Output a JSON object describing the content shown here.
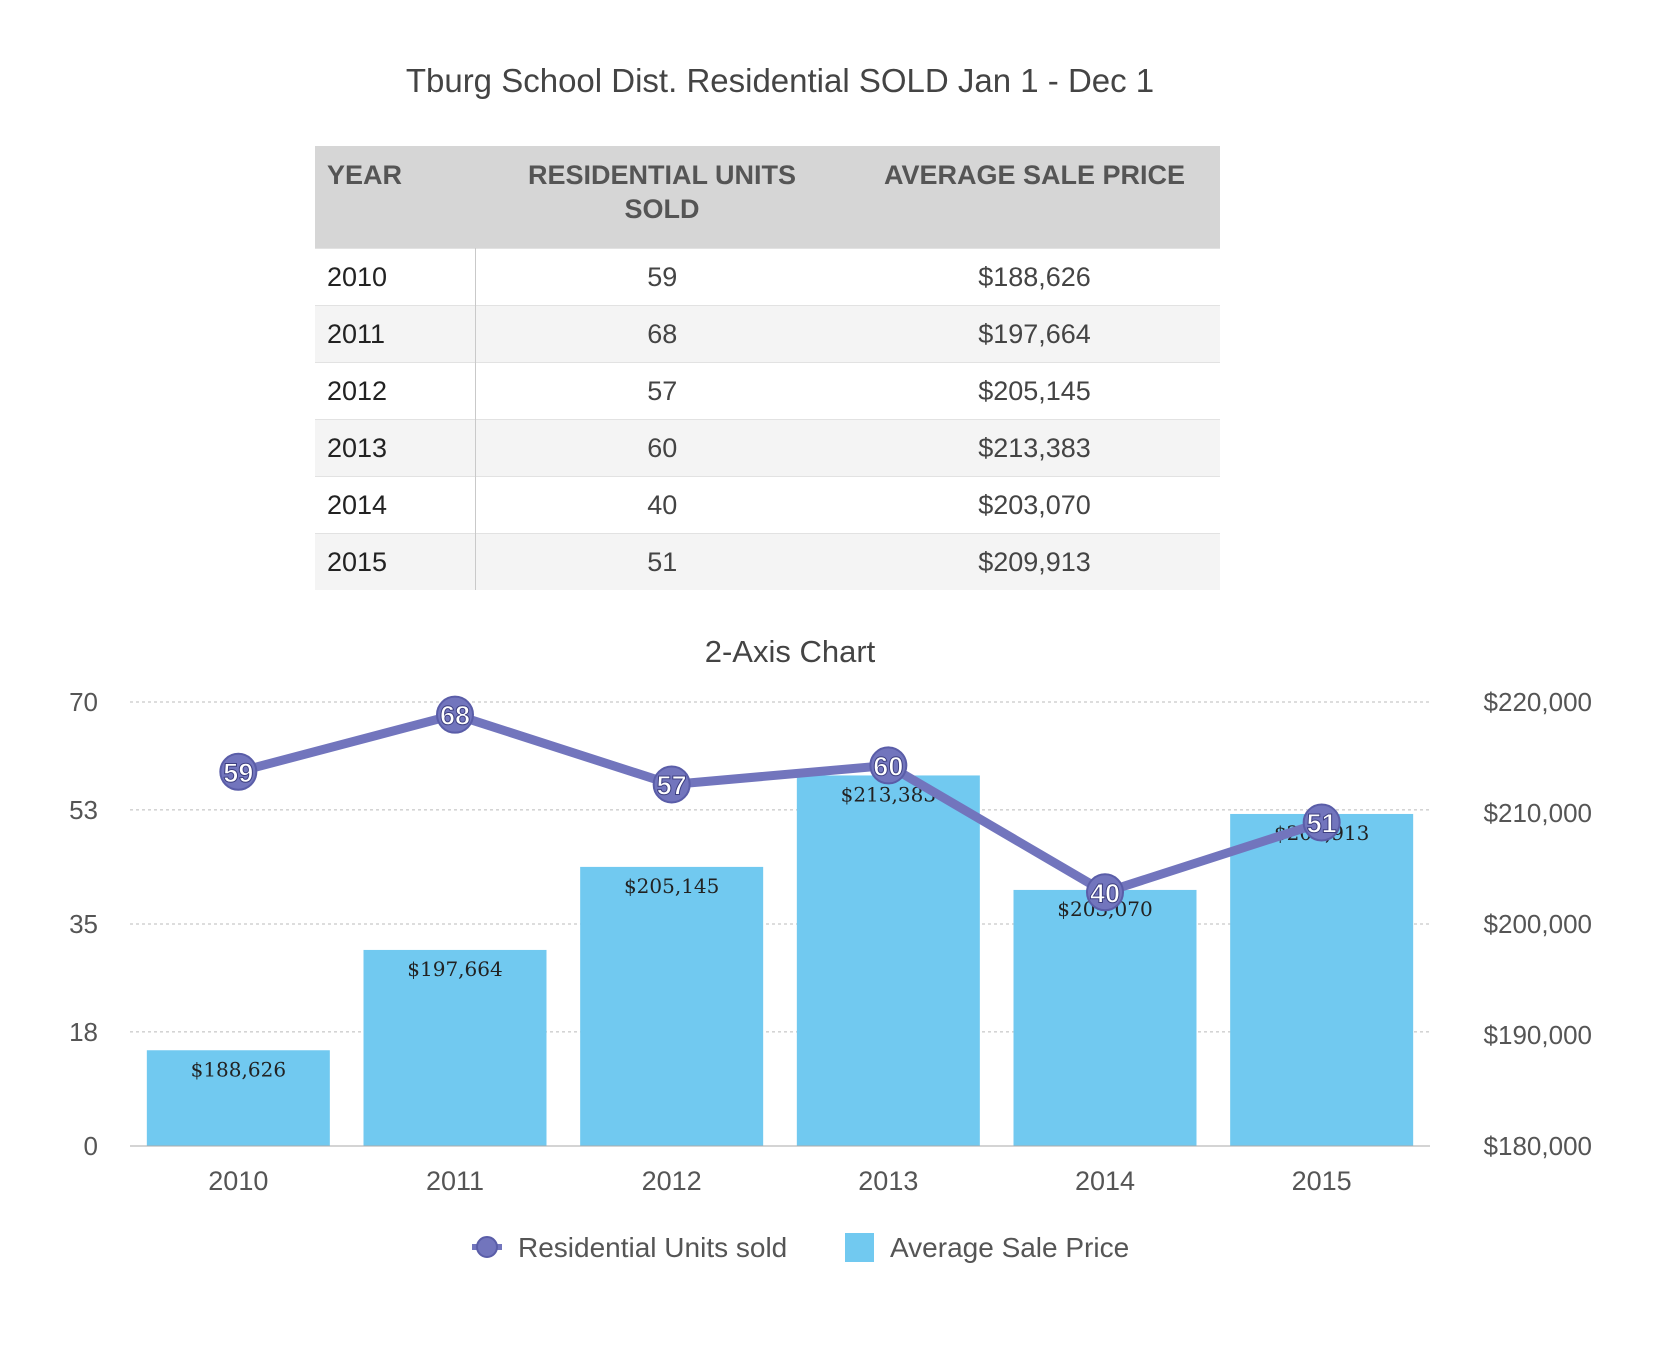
{
  "page": {
    "title": "Tburg School Dist. Residential SOLD  Jan 1  - Dec 1"
  },
  "table": {
    "headers": {
      "year": "YEAR",
      "units": "RESIDENTIAL UNITS SOLD",
      "price": "AVERAGE SALE PRICE"
    },
    "rows": [
      {
        "year": "2010",
        "units": "59",
        "price": "$188,626"
      },
      {
        "year": "2011",
        "units": "68",
        "price": "$197,664"
      },
      {
        "year": "2012",
        "units": "57",
        "price": "$205,145"
      },
      {
        "year": "2013",
        "units": "60",
        "price": "$213,383"
      },
      {
        "year": "2014",
        "units": "40",
        "price": "$203,070"
      },
      {
        "year": "2015",
        "units": "51",
        "price": "$209,913"
      }
    ]
  },
  "chart_data": {
    "type": "bar",
    "title": "2-Axis Chart",
    "categories": [
      "2010",
      "2011",
      "2012",
      "2013",
      "2014",
      "2015"
    ],
    "series": [
      {
        "name": "Average Sale Price",
        "type": "bar",
        "axis": "right",
        "values": [
          188626,
          197664,
          205145,
          213383,
          203070,
          209913
        ],
        "labels": [
          "$188,626",
          "$197,664",
          "$205,145",
          "$213,383",
          "$203,070",
          "$209,913"
        ],
        "color": "#71c9f0"
      },
      {
        "name": "Residential Units sold",
        "type": "line",
        "axis": "left",
        "values": [
          59,
          68,
          57,
          60,
          40,
          51
        ],
        "labels": [
          "59",
          "68",
          "57",
          "60",
          "40",
          "51"
        ],
        "color": "#7275bd"
      }
    ],
    "left_axis": {
      "ylim": [
        0,
        70
      ],
      "ticks": [
        0,
        18,
        35,
        53,
        70
      ],
      "tick_labels": [
        "0",
        "18",
        "35",
        "53",
        "70"
      ]
    },
    "right_axis": {
      "ylim": [
        180000,
        220000
      ],
      "ticks": [
        180000,
        190000,
        200000,
        210000,
        220000
      ],
      "tick_labels": [
        "$180,000",
        "$190,000",
        "$200,000",
        "$210,000",
        "$220,000"
      ]
    },
    "grid": true,
    "legend": "bottom"
  }
}
